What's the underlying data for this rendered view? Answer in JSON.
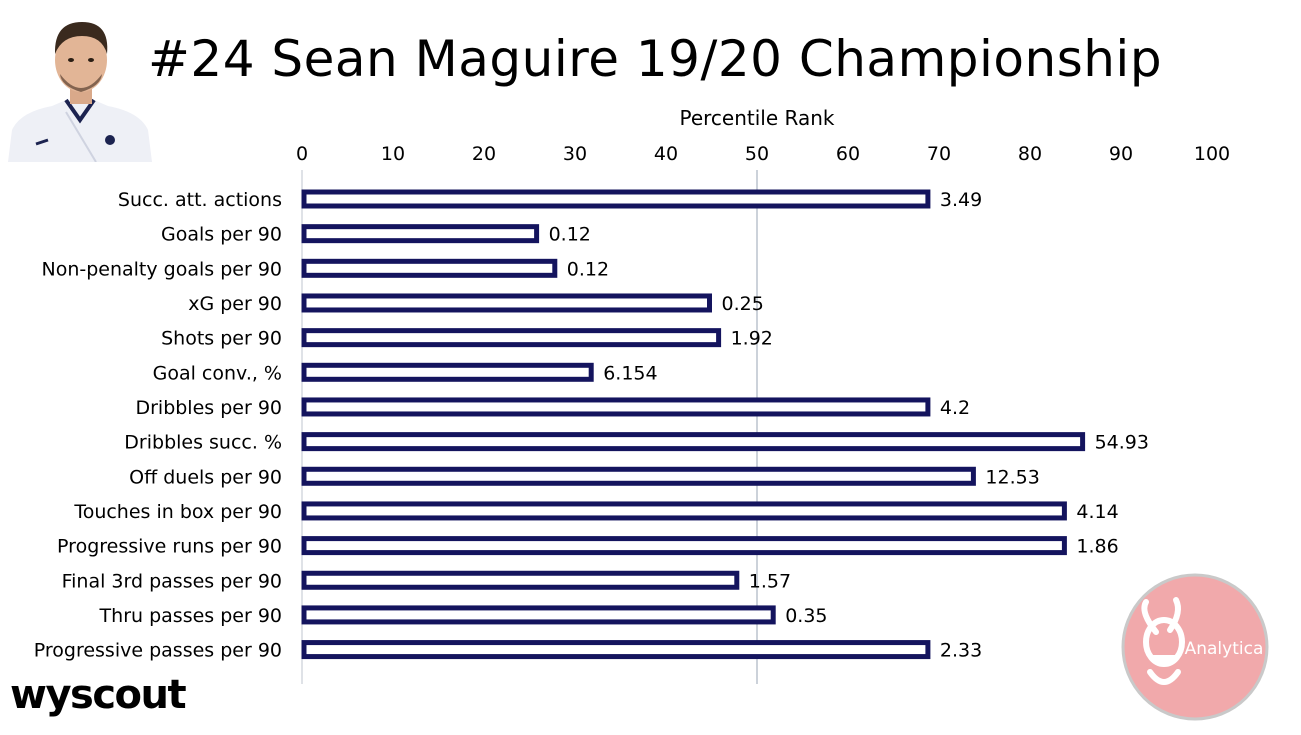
{
  "title": "#24 Sean Maguire 19/20 Championship",
  "brand": "wyscout",
  "badge_text": "Analytica",
  "colors": {
    "bar_fill": "#ffffff",
    "bar_border": "#14145e",
    "reference_line": "#9aa4b4",
    "badge_fill": "#f1a9ab",
    "badge_ring": "#c9c9c9",
    "shirt": "#eef0f6",
    "shirt_trim": "#1c2350"
  },
  "icons": [
    "player-photo",
    "wyscout-logo",
    "analytica-bee-badge"
  ],
  "chart_data": {
    "type": "bar",
    "orientation": "horizontal",
    "xlabel": "Percentile Rank",
    "xlim": [
      0,
      100
    ],
    "xticks": [
      0,
      10,
      20,
      30,
      40,
      50,
      60,
      70,
      80,
      90,
      100
    ],
    "reference_line": 50,
    "axis_position": "top",
    "grid": false,
    "legend": "none",
    "categories": [
      "Succ. att. actions",
      "Goals per 90",
      "Non-penalty goals per 90",
      "xG per 90",
      "Shots per 90",
      "Goal conv., %",
      "Dribbles per 90",
      "Dribbles succ. %",
      "Off duels per 90",
      "Touches in box per 90",
      "Progressive runs per 90",
      "Final 3rd passes per 90",
      "Thru passes per 90",
      "Progressive passes per 90"
    ],
    "values": [
      69,
      26,
      28,
      45,
      46,
      32,
      69,
      86,
      74,
      84,
      84,
      48,
      52,
      69
    ],
    "data_labels": [
      "3.49",
      "0.12",
      "0.12",
      "0.25",
      "1.92",
      "6.154",
      "4.2",
      "54.93",
      "12.53",
      "4.14",
      "1.86",
      "1.57",
      "0.35",
      "2.33"
    ]
  }
}
